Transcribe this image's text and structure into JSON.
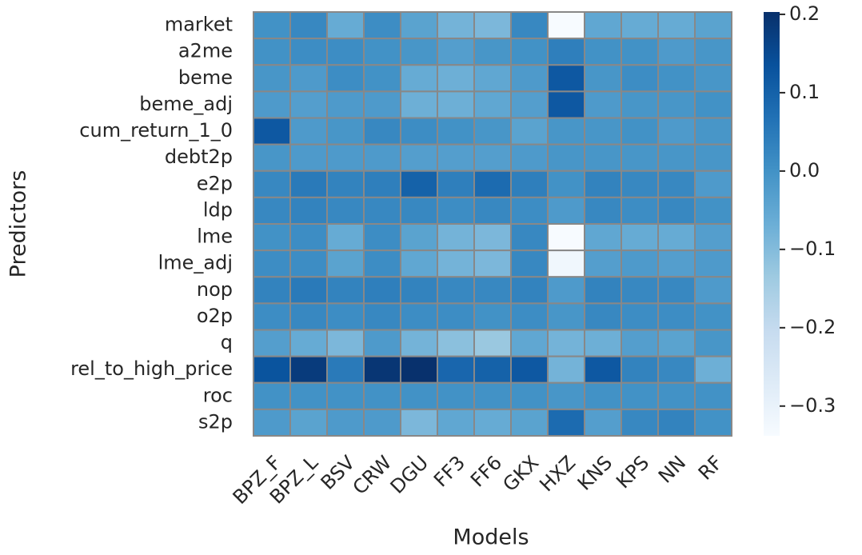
{
  "chart_data": {
    "type": "heatmap",
    "colormap": "Blues",
    "grid_color": "#888888",
    "x_label": "Models",
    "y_label": "Predictors",
    "x": [
      "BPZ_F",
      "BPZ_L",
      "BSV",
      "CRW",
      "DGU",
      "FF3",
      "FF6",
      "GKX",
      "HXZ",
      "KNS",
      "KPS",
      "NN",
      "RF"
    ],
    "y": [
      "market",
      "a2me",
      "beme",
      "beme_adj",
      "cum_return_1_0",
      "debt2p",
      "e2p",
      "ldp",
      "lme",
      "lme_adj",
      "nop",
      "o2p",
      "q",
      "rel_to_high_price",
      "roc",
      "s2p"
    ],
    "values": [
      [
        0.0,
        0.02,
        -0.06,
        0.01,
        -0.04,
        -0.08,
        -0.09,
        0.02,
        -0.34,
        -0.05,
        -0.06,
        -0.06,
        -0.04
      ],
      [
        0.0,
        0.01,
        0.01,
        0.0,
        -0.01,
        -0.03,
        -0.01,
        0.0,
        0.04,
        0.0,
        0.0,
        -0.02,
        -0.01
      ],
      [
        -0.01,
        -0.02,
        0.01,
        0.0,
        -0.06,
        -0.07,
        -0.05,
        -0.02,
        0.12,
        -0.01,
        0.01,
        0.0,
        -0.01
      ],
      [
        -0.02,
        -0.03,
        -0.02,
        -0.02,
        -0.07,
        -0.07,
        -0.05,
        -0.03,
        0.12,
        -0.02,
        -0.01,
        -0.01,
        0.0
      ],
      [
        0.12,
        -0.02,
        -0.01,
        0.02,
        0.01,
        0.0,
        -0.01,
        -0.04,
        -0.01,
        -0.01,
        0.0,
        -0.02,
        -0.01
      ],
      [
        -0.01,
        -0.02,
        -0.02,
        -0.02,
        -0.03,
        -0.03,
        -0.03,
        -0.02,
        -0.01,
        -0.01,
        -0.01,
        -0.01,
        -0.01
      ],
      [
        0.02,
        0.05,
        0.03,
        0.04,
        0.1,
        0.04,
        0.08,
        0.04,
        0.0,
        0.03,
        0.02,
        0.02,
        -0.02
      ],
      [
        0.02,
        0.03,
        0.02,
        0.02,
        0.02,
        0.01,
        0.02,
        0.01,
        -0.02,
        0.02,
        0.01,
        0.02,
        0.0
      ],
      [
        0.0,
        0.01,
        -0.06,
        0.01,
        -0.04,
        -0.08,
        -0.09,
        0.02,
        -0.34,
        -0.05,
        -0.06,
        -0.06,
        -0.03
      ],
      [
        0.01,
        0.01,
        -0.04,
        0.01,
        -0.05,
        -0.08,
        -0.09,
        0.02,
        -0.32,
        -0.03,
        -0.02,
        -0.03,
        -0.02
      ],
      [
        0.03,
        0.05,
        0.03,
        0.04,
        0.03,
        0.02,
        0.02,
        0.03,
        -0.02,
        0.03,
        0.02,
        0.02,
        -0.02
      ],
      [
        0.01,
        0.02,
        0.01,
        0.02,
        0.01,
        0.01,
        0.0,
        0.01,
        -0.01,
        0.02,
        0.01,
        0.01,
        0.0
      ],
      [
        -0.03,
        -0.06,
        -0.09,
        -0.02,
        -0.08,
        -0.11,
        -0.13,
        -0.05,
        -0.08,
        -0.07,
        -0.03,
        -0.04,
        -0.01
      ],
      [
        0.13,
        0.18,
        0.05,
        0.19,
        0.2,
        0.09,
        0.1,
        0.12,
        -0.08,
        0.12,
        0.03,
        0.02,
        -0.07
      ],
      [
        0.0,
        0.0,
        0.0,
        0.0,
        0.0,
        0.0,
        0.0,
        0.0,
        -0.01,
        0.0,
        0.0,
        0.0,
        0.0
      ],
      [
        -0.02,
        -0.04,
        -0.02,
        -0.02,
        -0.09,
        -0.05,
        -0.06,
        -0.04,
        0.08,
        -0.03,
        0.02,
        0.03,
        0.0
      ]
    ],
    "zlim": [
      -0.338,
      0.203
    ],
    "zticks": [
      0.2,
      0.1,
      {
        "value": 0,
        "label": "0.0"
      },
      {
        "value": -0.1,
        "label": "−0.1"
      },
      {
        "value": -0.2,
        "label": "−0.2"
      },
      {
        "value": -0.3,
        "label": "−0.3"
      }
    ]
  }
}
